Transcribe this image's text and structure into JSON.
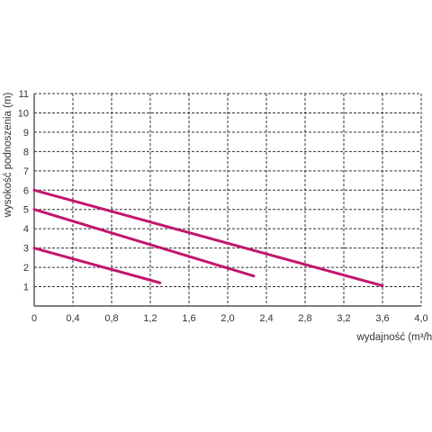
{
  "chart_data": {
    "type": "line",
    "title": "",
    "xlabel": "wydajność (m³/h)",
    "ylabel": "wysokość podnoszenia (m)",
    "xlim": [
      0,
      4.0
    ],
    "ylim": [
      0,
      11
    ],
    "x_ticks": [
      "0",
      "0,4",
      "0,8",
      "1,2",
      "1,6",
      "2,0",
      "2,4",
      "2,8",
      "3,2",
      "3,6",
      "4,0"
    ],
    "y_ticks": [
      "1",
      "2",
      "3",
      "4",
      "5",
      "6",
      "7",
      "8",
      "9",
      "10",
      "11"
    ],
    "grid": true,
    "grid_style": "dashed",
    "series": [
      {
        "x": [
          0,
          1.3
        ],
        "y": [
          3.0,
          1.2
        ]
      },
      {
        "x": [
          0,
          2.27
        ],
        "y": [
          5.0,
          1.55
        ]
      },
      {
        "x": [
          0,
          3.6
        ],
        "y": [
          6.0,
          1.05
        ]
      }
    ],
    "line_color": "#c2166e"
  }
}
